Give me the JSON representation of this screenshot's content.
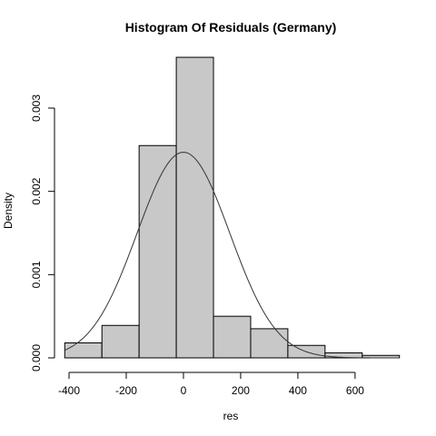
{
  "chart_data": {
    "type": "bar",
    "subtype": "histogram",
    "title": "Histogram Of Residuals (Germany)",
    "xlabel": "res",
    "ylabel": "Density",
    "xlim": [
      -400,
      740
    ],
    "ylim": [
      0,
      0.0036
    ],
    "x_ticks": [
      -400,
      -200,
      0,
      200,
      400,
      600
    ],
    "x_tick_labels": [
      "-400",
      "-200",
      "0",
      "200",
      "400",
      "600"
    ],
    "y_ticks": [
      0,
      0.001,
      0.002,
      0.003
    ],
    "y_tick_labels": [
      "0.000",
      "0.001",
      "0.002",
      "0.003"
    ],
    "bins": [
      {
        "start": -415,
        "end": -285,
        "density": 0.00018
      },
      {
        "start": -285,
        "end": -155,
        "density": 0.00039
      },
      {
        "start": -155,
        "end": -25,
        "density": 0.00255
      },
      {
        "start": -25,
        "end": 105,
        "density": 0.00361
      },
      {
        "start": 105,
        "end": 235,
        "density": 0.0005
      },
      {
        "start": 235,
        "end": 365,
        "density": 0.00035
      },
      {
        "start": 365,
        "end": 495,
        "density": 0.00015
      },
      {
        "start": 495,
        "end": 625,
        "density": 6e-05
      },
      {
        "start": 625,
        "end": 755,
        "density": 3e-05
      }
    ],
    "density_curve": {
      "type": "normal",
      "mean": 0,
      "sd": 162,
      "peak_density": 0.00247
    },
    "bar_color": "#c8c8c8",
    "edge_color": "#000000",
    "curve_color": "#333333",
    "grid": false,
    "legend": "none"
  }
}
